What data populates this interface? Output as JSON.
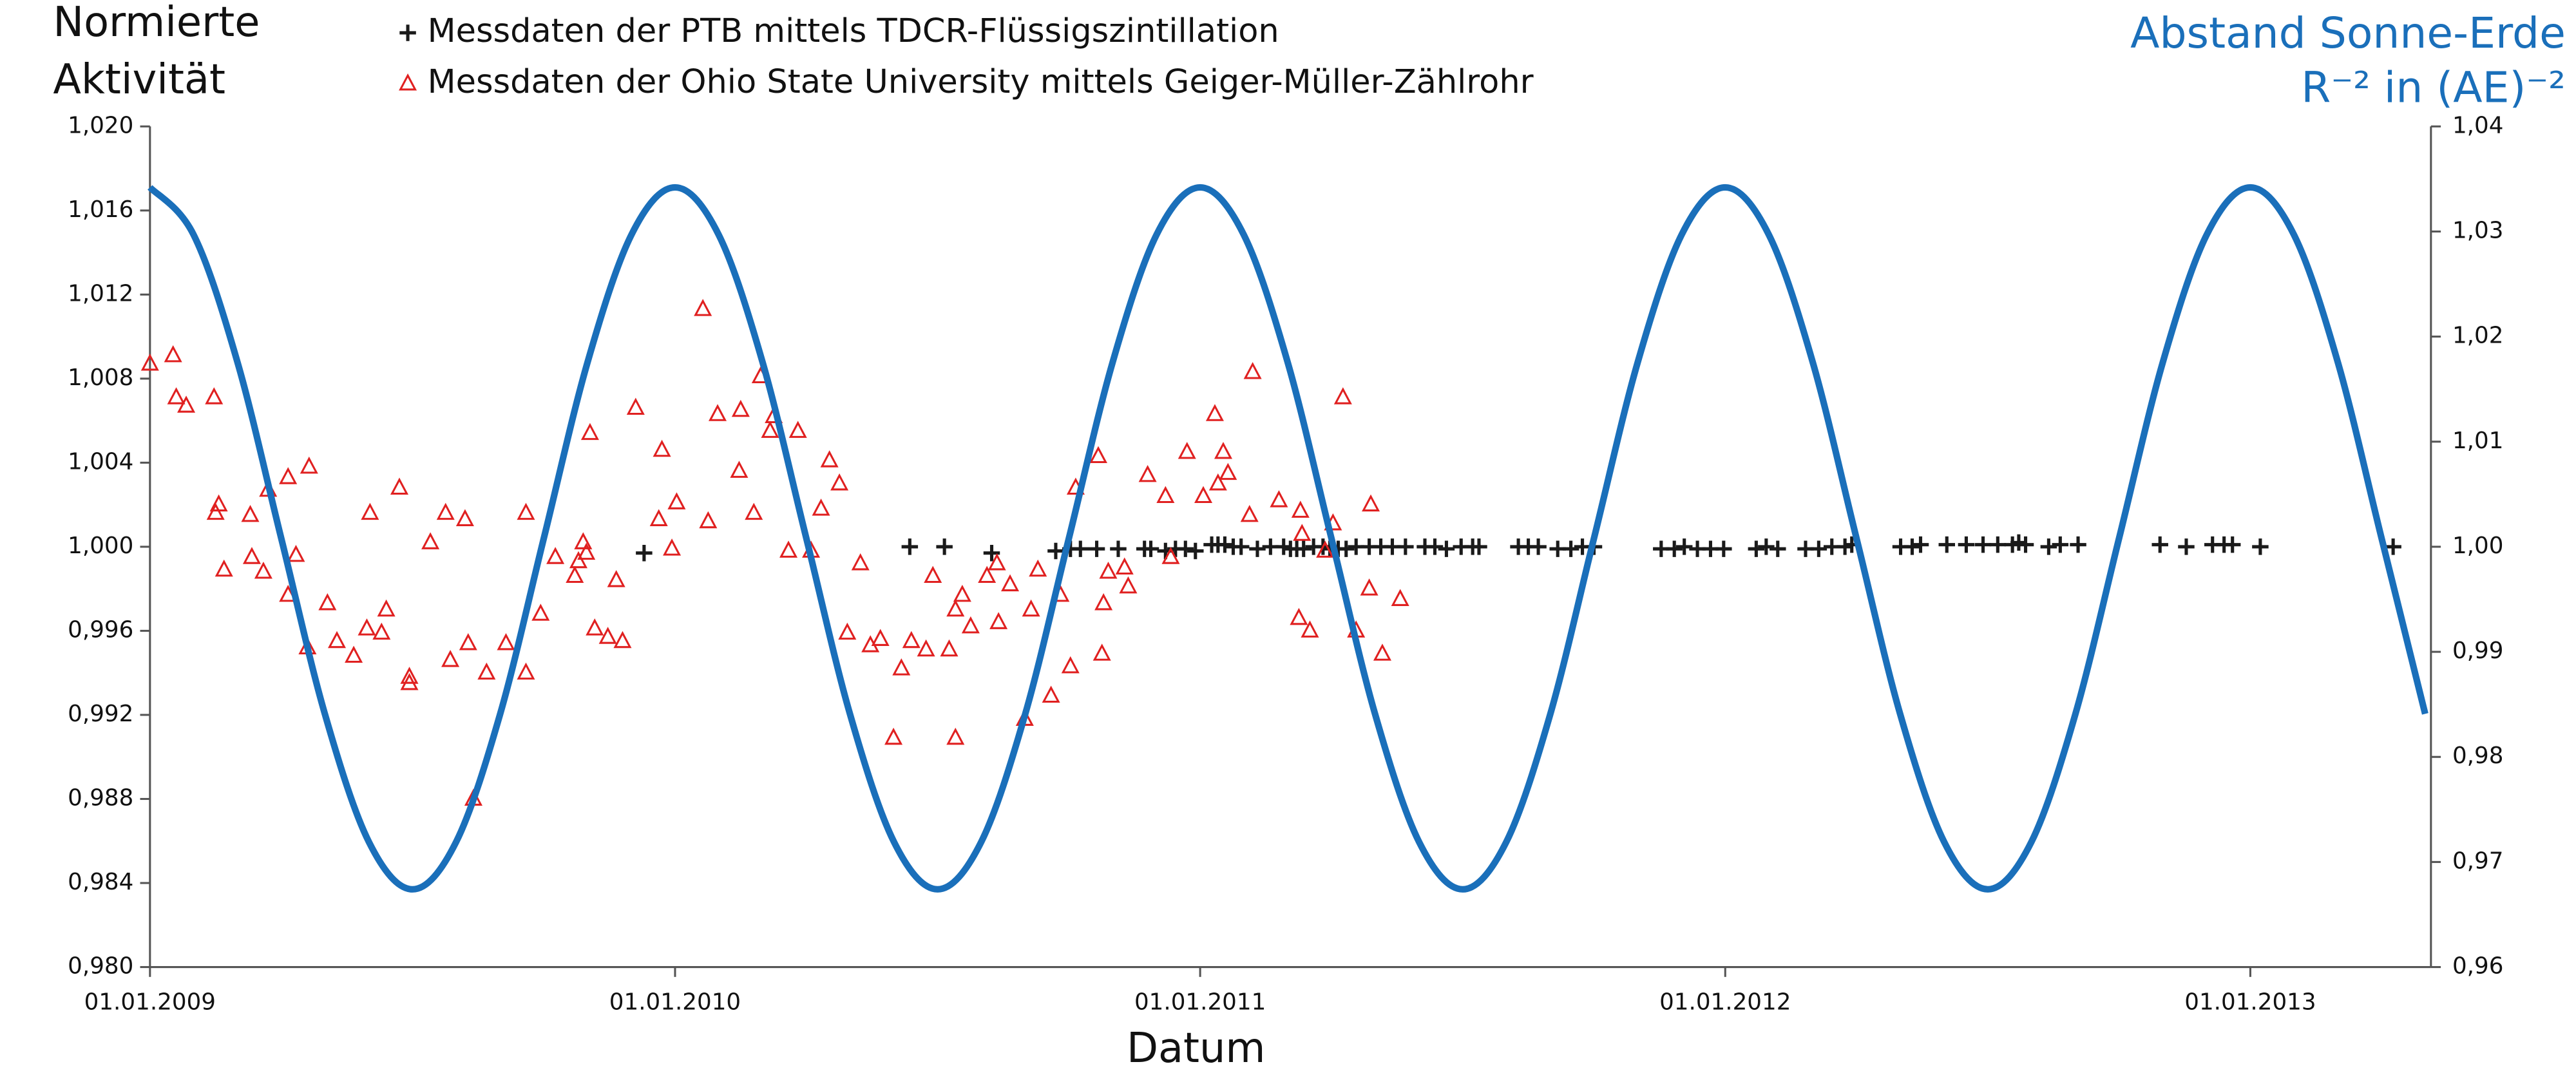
{
  "chart_data": {
    "type": "scatter",
    "y_label": [
      "Normierte",
      "Aktivität"
    ],
    "y2_label": [
      "Abstand Sonne-Erde",
      "R⁻² in (AE)⁻²"
    ],
    "x_label": "Datum",
    "xlim": [
      2009,
      2013.344
    ],
    "xticks": [
      {
        "value": 2009,
        "label": "01.01.2009"
      },
      {
        "value": 2010,
        "label": "01.01.2010"
      },
      {
        "value": 2011,
        "label": "01.01.2011"
      },
      {
        "value": 2012,
        "label": "01.01.2012"
      },
      {
        "value": 2013,
        "label": "01.01.2013"
      }
    ],
    "ylim": [
      0.98,
      1.02
    ],
    "yticks": [
      {
        "value": 0.98,
        "label": "0,980"
      },
      {
        "value": 0.984,
        "label": "0,984"
      },
      {
        "value": 0.988,
        "label": "0,988"
      },
      {
        "value": 0.992,
        "label": "0,992"
      },
      {
        "value": 0.996,
        "label": "0,996"
      },
      {
        "value": 1.0,
        "label": "1,000"
      },
      {
        "value": 1.004,
        "label": "1,004"
      },
      {
        "value": 1.008,
        "label": "1,008"
      },
      {
        "value": 1.012,
        "label": "1,012"
      },
      {
        "value": 1.016,
        "label": "1,016"
      },
      {
        "value": 1.02,
        "label": "1,020"
      }
    ],
    "y2lim": [
      0.96,
      1.04
    ],
    "y2ticks": [
      {
        "value": 0.96,
        "label": "0,96"
      },
      {
        "value": 0.97,
        "label": "0,97"
      },
      {
        "value": 0.98,
        "label": "0,98"
      },
      {
        "value": 0.99,
        "label": "0,99"
      },
      {
        "value": 1.0,
        "label": "1,00"
      },
      {
        "value": 1.01,
        "label": "1,01"
      },
      {
        "value": 1.02,
        "label": "1,02"
      },
      {
        "value": 1.03,
        "label": "1,03"
      },
      {
        "value": 1.04,
        "label": "1,04"
      }
    ],
    "series": [
      {
        "name": "Messdaten der PTB mittels TDCR-Flüssigszintillation",
        "color": "#1a1a1a",
        "marker": "plus",
        "x": [
          2009.941,
          2010.447,
          2010.513,
          2010.603,
          2010.725,
          2010.753,
          2010.772,
          2010.803,
          2010.844,
          2010.894,
          2010.906,
          2010.934,
          2010.953,
          2010.972,
          2010.991,
          2011.022,
          2011.034,
          2011.047,
          2011.063,
          2011.078,
          2011.109,
          2011.134,
          2011.159,
          2011.172,
          2011.184,
          2011.197,
          2011.216,
          2011.234,
          2011.247,
          2011.263,
          2011.278,
          2011.297,
          2011.322,
          2011.344,
          2011.366,
          2011.391,
          2011.428,
          2011.447,
          2011.469,
          2011.497,
          2011.519,
          2011.531,
          2011.606,
          2011.625,
          2011.644,
          2011.681,
          2011.706,
          2011.728,
          2011.75,
          2011.878,
          2011.903,
          2011.922,
          2011.947,
          2011.972,
          2011.997,
          2012.059,
          2012.078,
          2012.1,
          2012.153,
          2012.178,
          2012.203,
          2012.228,
          2012.241,
          2012.334,
          2012.356,
          2012.372,
          2012.422,
          2012.459,
          2012.491,
          2012.519,
          2012.547,
          2012.559,
          2012.572,
          2012.616,
          2012.638,
          2012.672,
          2012.828,
          2012.878,
          2012.928,
          2012.95,
          2012.966,
          2013.019,
          2013.272
        ],
        "values": [
          0.9997,
          1.0,
          1.0,
          0.9997,
          0.9998,
          0.9999,
          0.9999,
          0.9999,
          0.9999,
          0.9999,
          0.9999,
          0.9998,
          0.9999,
          0.9999,
          0.9998,
          1.0001,
          1.0001,
          1.0001,
          1.0,
          1.0,
          0.9999,
          1.0,
          1.0,
          0.9999,
          0.9999,
          0.9999,
          1.0,
          1.0,
          0.9999,
          0.9999,
          0.9999,
          1.0,
          1.0,
          1.0,
          1.0,
          1.0,
          1.0,
          1.0,
          0.9999,
          1.0,
          1.0,
          1.0,
          1.0,
          1.0,
          1.0,
          0.9999,
          0.9999,
          1.0,
          1.0,
          0.9999,
          0.9999,
          1.0,
          0.9999,
          0.9999,
          0.9999,
          0.9999,
          1.0,
          0.9999,
          0.9999,
          0.9999,
          1.0,
          1.0,
          1.0001,
          1.0,
          1.0,
          1.0001,
          1.0001,
          1.0001,
          1.0001,
          1.0001,
          1.0001,
          1.0002,
          1.0001,
          1.0,
          1.0001,
          1.0001,
          1.0001,
          1.0,
          1.0001,
          1.0001,
          1.0001,
          1.0,
          1.0
        ]
      },
      {
        "name": "Messdaten der Ohio State University mittels Geiger-Müller-Zählrohr",
        "color": "#e02020",
        "marker": "triangle",
        "x": [
          2009.0,
          2009.044,
          2009.05,
          2009.069,
          2009.122,
          2009.125,
          2009.131,
          2009.141,
          2009.191,
          2009.194,
          2009.216,
          2009.225,
          2009.263,
          2009.263,
          2009.278,
          2009.3,
          2009.303,
          2009.338,
          2009.356,
          2009.388,
          2009.413,
          2009.419,
          2009.441,
          2009.45,
          2009.475,
          2009.494,
          2009.494,
          2009.534,
          2009.563,
          2009.572,
          2009.6,
          2009.606,
          2009.616,
          2009.641,
          2009.678,
          2009.716,
          2009.716,
          2009.744,
          2009.772,
          2009.809,
          2009.816,
          2009.825,
          2009.831,
          2009.838,
          2009.847,
          2009.872,
          2009.888,
          2009.9,
          2009.925,
          2009.969,
          2009.975,
          2009.994,
          2010.003,
          2010.053,
          2010.063,
          2010.081,
          2010.122,
          2010.125,
          2010.15,
          2010.163,
          2010.181,
          2010.188,
          2010.216,
          2010.234,
          2010.259,
          2010.278,
          2010.294,
          2010.313,
          2010.328,
          2010.353,
          2010.372,
          2010.391,
          2010.416,
          2010.431,
          2010.45,
          2010.478,
          2010.491,
          2010.522,
          2010.534,
          2010.534,
          2010.547,
          2010.563,
          2010.594,
          2010.613,
          2010.616,
          2010.638,
          2010.666,
          2010.678,
          2010.691,
          2010.716,
          2010.734,
          2010.753,
          2010.763,
          2010.806,
          2010.813,
          2010.816,
          2010.825,
          2010.856,
          2010.863,
          2010.9,
          2010.934,
          2010.944,
          2010.975,
          2011.006,
          2011.028,
          2011.034,
          2011.044,
          2011.053,
          2011.094,
          2011.1,
          2011.15,
          2011.188,
          2011.191,
          2011.194,
          2011.209,
          2011.238,
          2011.253,
          2011.272,
          2011.297,
          2011.322,
          2011.325,
          2011.347,
          2011.381
        ],
        "values": [
          1.0087,
          1.0091,
          1.0071,
          1.0067,
          1.0071,
          1.0016,
          1.002,
          0.9989,
          1.0015,
          0.9995,
          0.9988,
          1.0027,
          1.0033,
          0.9977,
          0.9996,
          0.9952,
          1.0038,
          0.9973,
          0.9955,
          0.9948,
          0.9961,
          1.0016,
          0.9959,
          0.997,
          1.0028,
          0.9938,
          0.9935,
          1.0002,
          1.0016,
          0.9946,
          1.0013,
          0.9954,
          0.988,
          0.994,
          0.9954,
          1.0016,
          0.994,
          0.9968,
          0.9995,
          0.9986,
          0.9993,
          1.0002,
          0.9997,
          1.0054,
          0.9961,
          0.9957,
          0.9984,
          0.9955,
          1.0066,
          1.0013,
          1.0046,
          0.9999,
          1.0021,
          1.0113,
          1.0012,
          1.0063,
          1.0036,
          1.0065,
          1.0016,
          1.0081,
          1.0055,
          1.0062,
          0.9998,
          1.0055,
          0.9998,
          1.0018,
          1.0041,
          1.003,
          0.9959,
          0.9992,
          0.9953,
          0.9956,
          0.9909,
          0.9942,
          0.9955,
          0.9951,
          0.9986,
          0.9951,
          0.9909,
          0.997,
          0.9977,
          0.9962,
          0.9986,
          0.9992,
          0.9964,
          0.9982,
          0.9918,
          0.997,
          0.9989,
          0.9929,
          0.9977,
          0.9943,
          1.0028,
          1.0043,
          0.9949,
          0.9973,
          0.9988,
          0.999,
          0.9981,
          1.0034,
          1.0024,
          0.9995,
          1.0045,
          1.0024,
          1.0063,
          1.003,
          1.0045,
          1.0035,
          1.0015,
          1.0083,
          1.0022,
          0.9966,
          1.0017,
          1.0006,
          0.996,
          0.9998,
          1.0011,
          1.0071,
          0.996,
          0.998,
          1.002,
          0.9949,
          0.9975
        ]
      },
      {
        "color": "#1a6fba",
        "marker": "line",
        "axis": "y2",
        "x": [
          2009,
          2009.083,
          2009.167,
          2009.25,
          2009.333,
          2009.417,
          2009.5,
          2009.583,
          2009.667,
          2009.75,
          2009.833,
          2009.917,
          2010,
          2010.083,
          2010.167,
          2010.25,
          2010.333,
          2010.417,
          2010.5,
          2010.583,
          2010.667,
          2010.75,
          2010.833,
          2010.917,
          2011,
          2011.083,
          2011.167,
          2011.25,
          2011.333,
          2011.417,
          2011.5,
          2011.583,
          2011.667,
          2011.75,
          2011.833,
          2011.917,
          2012,
          2012.083,
          2012.167,
          2012.25,
          2012.333,
          2012.417,
          2012.5,
          2012.583,
          2012.667,
          2012.75,
          2012.833,
          2012.917,
          2013,
          2013.083,
          2013.167,
          2013.25,
          2013.333
        ],
        "values": [
          1.0342,
          1.0297,
          1.0175,
          1.0008,
          0.9841,
          0.9719,
          0.9674,
          0.9719,
          0.9841,
          1.0008,
          1.0175,
          1.0297,
          1.0342,
          1.0297,
          1.0175,
          1.0008,
          0.9841,
          0.9719,
          0.9674,
          0.9719,
          0.9841,
          1.0008,
          1.0175,
          1.0297,
          1.0342,
          1.0297,
          1.0175,
          1.0008,
          0.9841,
          0.9719,
          0.9674,
          0.9719,
          0.9841,
          1.0008,
          1.0175,
          1.0297,
          1.0342,
          1.0297,
          1.0175,
          1.0008,
          0.9841,
          0.9719,
          0.9674,
          0.9719,
          0.9841,
          1.0008,
          1.0175,
          1.0297,
          1.0342,
          1.0297,
          1.0175,
          1.0008,
          0.9841
        ]
      }
    ]
  }
}
